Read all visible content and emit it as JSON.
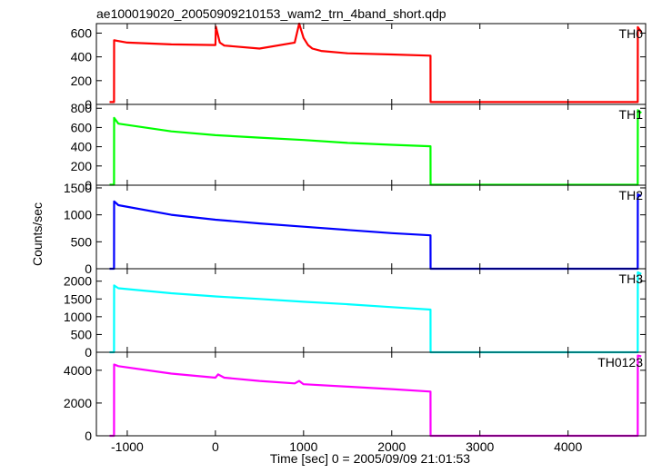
{
  "figure": {
    "title": "ae100019020_20050909210153_wam2_trn_4band_short.qdp",
    "ylabel": "Counts/sec",
    "xlabel": "Time [sec] 0 = 2005/09/09 21:01:53"
  },
  "chart_data": [
    {
      "type": "line",
      "panel_label": "TH0",
      "color": "#ff0000",
      "xlim": [
        -1350,
        4880
      ],
      "ylim": [
        0,
        680
      ],
      "x_ticks": [
        -1000,
        0,
        1000,
        2000,
        3000,
        4000
      ],
      "y_ticks": [
        0,
        200,
        400,
        600
      ],
      "series": [
        {
          "x": [
            -1200,
            -1150,
            -1149,
            -1000,
            -500,
            0,
            5,
            50,
            100,
            500,
            900,
            950,
            1000,
            1050,
            1100,
            1200,
            1500,
            2000,
            2440,
            2441,
            3000,
            4000,
            4700,
            4790,
            4791,
            4830
          ],
          "y": [
            20,
            20,
            540,
            520,
            505,
            500,
            655,
            520,
            495,
            470,
            520,
            680,
            560,
            500,
            470,
            450,
            430,
            420,
            410,
            20,
            20,
            20,
            20,
            20,
            650,
            610
          ]
        }
      ]
    },
    {
      "type": "line",
      "panel_label": "TH1",
      "color": "#00ff00",
      "xlim": [
        -1350,
        4880
      ],
      "ylim": [
        0,
        840
      ],
      "x_ticks": [
        -1000,
        0,
        1000,
        2000,
        3000,
        4000
      ],
      "y_ticks": [
        0,
        200,
        400,
        600,
        800
      ],
      "series": [
        {
          "x": [
            -1200,
            -1150,
            -1149,
            -1100,
            -500,
            0,
            500,
            1000,
            1500,
            2000,
            2440,
            2441,
            3000,
            4000,
            4790,
            4791,
            4830
          ],
          "y": [
            5,
            5,
            700,
            640,
            560,
            520,
            495,
            470,
            440,
            420,
            405,
            5,
            5,
            5,
            5,
            780,
            750
          ]
        }
      ]
    },
    {
      "type": "line",
      "panel_label": "TH2",
      "color": "#0000ff",
      "xlim": [
        -1350,
        4880
      ],
      "ylim": [
        0,
        1550
      ],
      "x_ticks": [
        -1000,
        0,
        1000,
        2000,
        3000,
        4000
      ],
      "y_ticks": [
        0,
        500,
        1000,
        1500
      ],
      "series": [
        {
          "x": [
            -1200,
            -1150,
            -1149,
            -1100,
            -500,
            0,
            500,
            1000,
            1500,
            2000,
            2440,
            2441,
            3000,
            4000,
            4790,
            4791,
            4830
          ],
          "y": [
            0,
            0,
            1250,
            1180,
            1000,
            910,
            840,
            780,
            720,
            660,
            620,
            0,
            0,
            0,
            0,
            1380,
            1350
          ]
        }
      ]
    },
    {
      "type": "line",
      "panel_label": "TH3",
      "color": "#00ffff",
      "xlim": [
        -1350,
        4880
      ],
      "ylim": [
        0,
        2350
      ],
      "x_ticks": [
        -1000,
        0,
        1000,
        2000,
        3000,
        4000
      ],
      "y_ticks": [
        0,
        500,
        1000,
        1500,
        2000
      ],
      "series": [
        {
          "x": [
            -1200,
            -1150,
            -1149,
            -1100,
            -500,
            0,
            500,
            1000,
            1500,
            2000,
            2440,
            2441,
            3000,
            4000,
            4790,
            4791,
            4830
          ],
          "y": [
            0,
            0,
            1880,
            1800,
            1660,
            1570,
            1500,
            1420,
            1350,
            1270,
            1200,
            0,
            0,
            0,
            0,
            2250,
            2200
          ]
        }
      ]
    },
    {
      "type": "line",
      "panel_label": "TH0123",
      "color": "#ff00ff",
      "xlim": [
        -1350,
        4880
      ],
      "ylim": [
        0,
        5100
      ],
      "x_ticks": [
        -1000,
        0,
        1000,
        2000,
        3000,
        4000
      ],
      "y_ticks": [
        0,
        2000,
        4000
      ],
      "series": [
        {
          "x": [
            -1200,
            -1150,
            -1149,
            -1100,
            -500,
            0,
            30,
            100,
            500,
            900,
            950,
            1000,
            1500,
            2000,
            2440,
            2441,
            3000,
            4000,
            4790,
            4791,
            4830
          ],
          "y": [
            0,
            0,
            4350,
            4250,
            3800,
            3550,
            3750,
            3550,
            3350,
            3200,
            3350,
            3150,
            3000,
            2850,
            2700,
            0,
            0,
            0,
            0,
            4900,
            4850
          ]
        }
      ]
    }
  ]
}
